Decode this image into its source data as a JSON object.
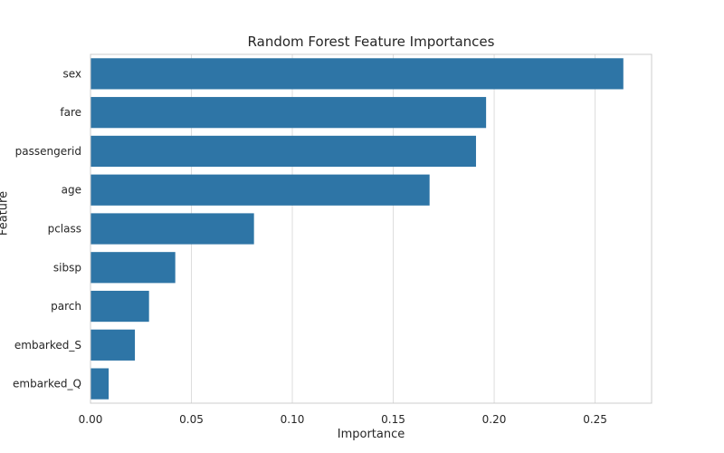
{
  "chart_data": {
    "type": "bar",
    "orientation": "horizontal",
    "title": "Random Forest Feature Importances",
    "xlabel": "Importance",
    "ylabel": "Feature",
    "categories": [
      "sex",
      "fare",
      "passengerid",
      "age",
      "pclass",
      "sibsp",
      "parch",
      "embarked_S",
      "embarked_Q"
    ],
    "values": [
      0.264,
      0.196,
      0.191,
      0.168,
      0.081,
      0.042,
      0.029,
      0.022,
      0.009
    ],
    "xlim": [
      0,
      0.278
    ],
    "xticks": [
      "0.00",
      "0.05",
      "0.10",
      "0.15",
      "0.20",
      "0.25"
    ],
    "xtick_values": [
      0,
      0.05,
      0.1,
      0.15,
      0.2,
      0.25
    ],
    "grid": true,
    "colors": {
      "bar": "#2e75a6",
      "grid": "#dddddd",
      "spine": "#cccccc",
      "text": "#262626"
    }
  }
}
